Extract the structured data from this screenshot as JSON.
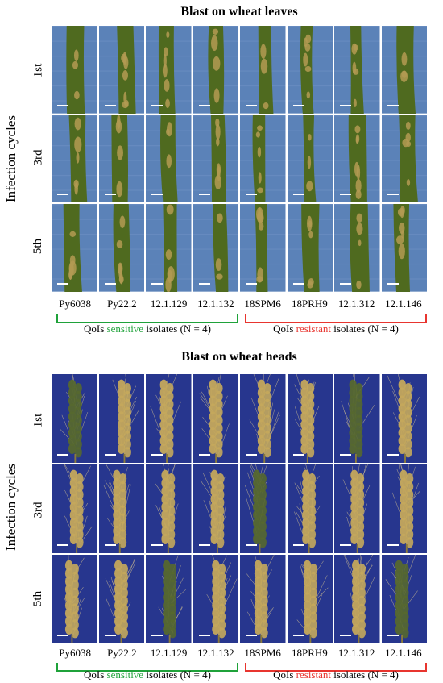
{
  "leaves_panel": {
    "title": "Blast on wheat leaves",
    "axis_label": "Infection cycles",
    "rows": [
      "1st",
      "3rd",
      "5th"
    ]
  },
  "heads_panel": {
    "title": "Blast on wheat heads",
    "axis_label": "Infection cycles",
    "rows": [
      "1st",
      "3rd",
      "5th"
    ]
  },
  "isolates": [
    "Py6038",
    "Py22.2",
    "12.1.129",
    "12.1.132",
    "18SPM6",
    "18PRH9",
    "12.1.312",
    "12.1.146"
  ],
  "groups": {
    "sensitive": {
      "prefix": "QoIs ",
      "highlight": "sensitive",
      "suffix": " isolates (N = 4)",
      "color": "#1fa23a"
    },
    "resistant": {
      "prefix": "QoIs ",
      "highlight": "resistant",
      "suffix": " isolates (N = 4)",
      "color": "#e8352f"
    }
  },
  "colors": {
    "leaf_background": "#5b82b8",
    "head_background": "#27368e",
    "leaf_green": "#4f6a1f",
    "lesion_tan": "#b39a52",
    "head_straw": "#c4a85c"
  }
}
